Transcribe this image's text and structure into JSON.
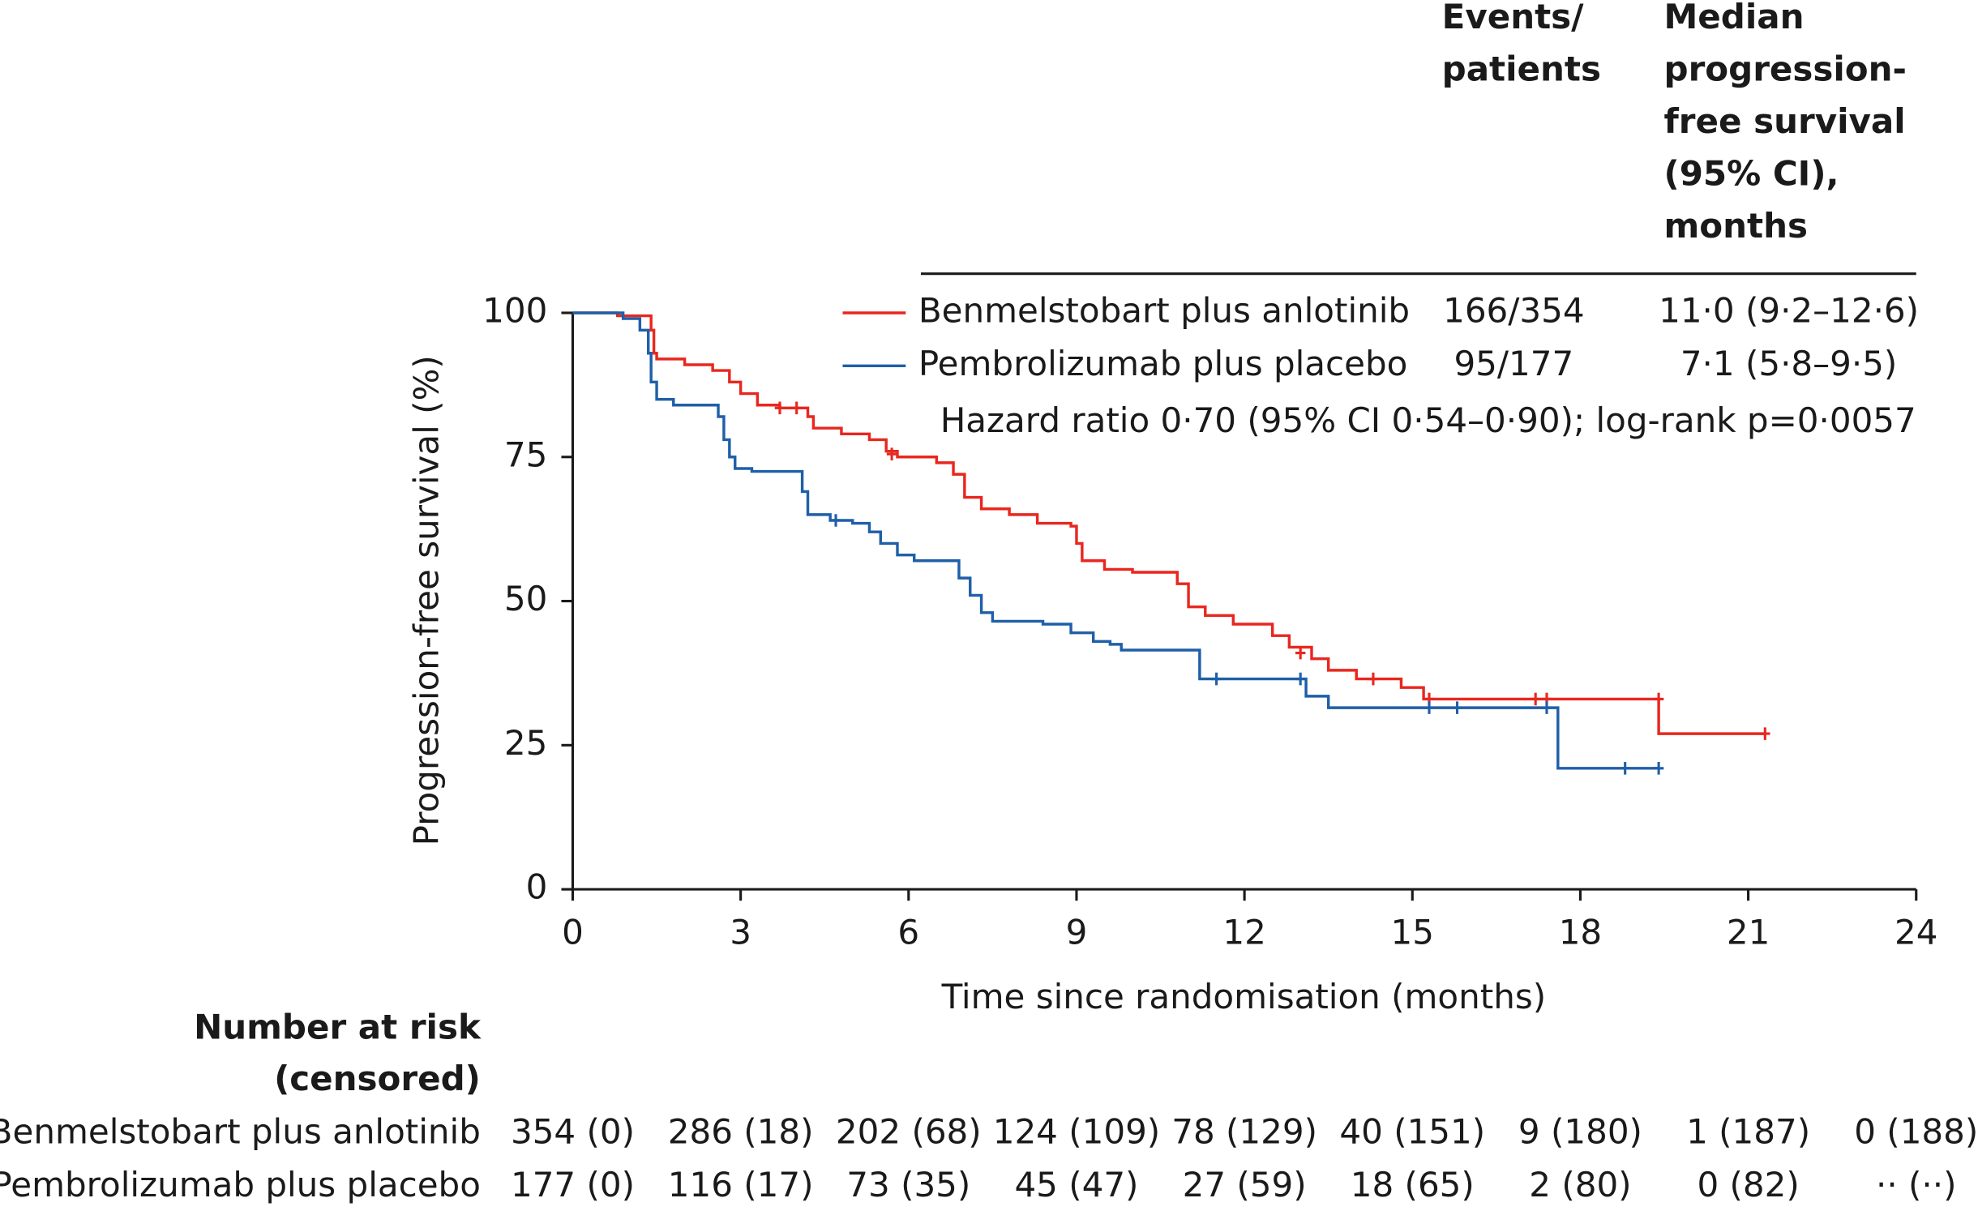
{
  "chart_data": {
    "type": "step",
    "xlabel": "Time since randomisation (months)",
    "ylabel": "Progression-free survival (%)",
    "xlim": [
      0,
      24
    ],
    "ylim": [
      0,
      100
    ],
    "xticks": [
      0,
      3,
      6,
      9,
      12,
      15,
      18,
      21,
      24
    ],
    "yticks": [
      0,
      25,
      50,
      75,
      100
    ],
    "legend_headers": [
      [
        "Events/",
        "patients"
      ],
      [
        "Median",
        "progression-",
        "free survival",
        "(95% CI),",
        "months"
      ]
    ],
    "annotation": "Hazard ratio 0·70 (95% CI 0·54–0·90); log-rank p=0·0057",
    "series": [
      {
        "name": "Benmelstobart plus anlotinib",
        "color": "#e8271f",
        "events_patients": "166/354",
        "median": "11·0 (9·2–12·6)",
        "x": [
          0,
          0.8,
          1.4,
          1.45,
          1.5,
          2,
          2.5,
          2.8,
          3,
          3.3,
          3.7,
          4.2,
          4.3,
          4.8,
          5.3,
          5.6,
          5.8,
          6.5,
          6.8,
          7,
          7.3,
          7.8,
          8.3,
          8.9,
          9,
          9.1,
          9.5,
          10,
          10.8,
          11,
          11.3,
          11.8,
          12.5,
          12.8,
          13.2,
          13.5,
          14,
          14.8,
          15.2,
          19.4,
          21.3
        ],
        "values": [
          100,
          99.5,
          97,
          93,
          92,
          91,
          90,
          88,
          86,
          84,
          83.5,
          82,
          80,
          79,
          78,
          76,
          75,
          74,
          72,
          68,
          66,
          65,
          63.5,
          63,
          60,
          57,
          55.5,
          55,
          53,
          49,
          47.5,
          46,
          44,
          42,
          40,
          38,
          36.5,
          35,
          33,
          27,
          27
        ],
        "censored": {
          "x": [
            3.7,
            4.0,
            5.7,
            13.0,
            14.3,
            15.3,
            17.2,
            17.4,
            19.4,
            21.3
          ],
          "values": [
            83.5,
            83.5,
            75.5,
            41,
            36.5,
            33,
            33,
            33,
            33,
            27
          ]
        },
        "at_risk": [
          "354 (0)",
          "286 (18)",
          "202 (68)",
          "124 (109)",
          "78 (129)",
          "40 (151)",
          "9 (180)",
          "1 (187)",
          "0 (188)"
        ]
      },
      {
        "name": "Pembrolizumab plus placebo",
        "color": "#1f5fa8",
        "events_patients": "95/177",
        "median": "7·1 (5·8–9·5)",
        "x": [
          0,
          0.9,
          1.2,
          1.35,
          1.4,
          1.5,
          1.8,
          2.6,
          2.7,
          2.8,
          2.9,
          3.2,
          4.1,
          4.2,
          4.6,
          5,
          5.3,
          5.5,
          5.8,
          6.1,
          6.9,
          7.1,
          7.3,
          7.5,
          8.4,
          8.9,
          9.3,
          9.6,
          9.8,
          11.2,
          13.1,
          13.5,
          17.6,
          19.4
        ],
        "values": [
          100,
          99,
          97,
          93,
          88,
          85,
          84,
          82,
          78,
          75,
          73,
          72.5,
          69,
          65,
          64,
          63.5,
          62,
          60,
          58,
          57,
          54,
          51,
          48,
          46.5,
          46,
          44.5,
          43,
          42.5,
          41.5,
          36.5,
          33.5,
          31.5,
          21,
          21
        ],
        "censored": {
          "x": [
            4.7,
            11.5,
            13.0,
            15.3,
            15.8,
            17.4,
            18.8,
            19.4
          ],
          "values": [
            64,
            36.5,
            36.5,
            31.5,
            31.5,
            31.5,
            21,
            21
          ]
        },
        "at_risk": [
          "177 (0)",
          "116 (17)",
          "73 (35)",
          "45 (47)",
          "27 (59)",
          "18 (65)",
          "2 (80)",
          "0 (82)",
          "·· (··)"
        ]
      }
    ],
    "at_risk_title": [
      "Number at risk",
      "(censored)"
    ]
  }
}
